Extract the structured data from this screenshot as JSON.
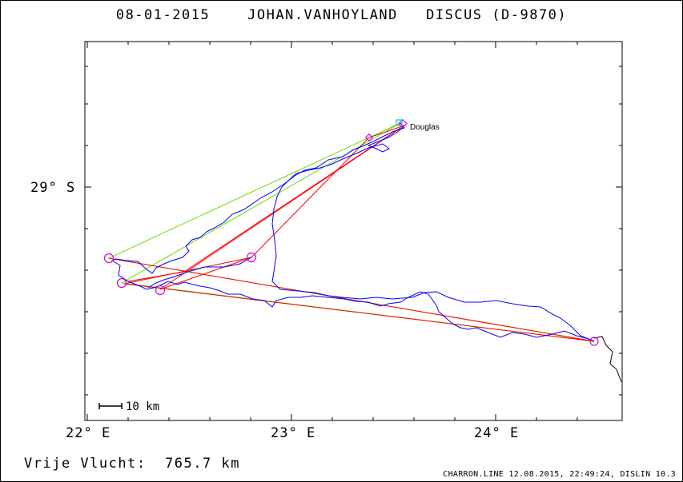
{
  "header": {
    "date": "08-01-2015",
    "pilot": "JOHAN.VANHOYLAND",
    "glider": "DISCUS (D-9870)"
  },
  "map": {
    "lat_label": "29° S",
    "lon_labels": [
      "22° E",
      "23° E",
      "24° E"
    ],
    "scale_label": "10 km",
    "place_label": "Douglas",
    "colors": {
      "track": "#0000ff",
      "turnpoint_leg": "#ff0000",
      "optimized_leg": "#66dd00",
      "turnpoint": "#dd00dd",
      "start": "#00cccc",
      "border": "#000000"
    }
  },
  "footer": {
    "distance_label": "Vrije Vlucht:",
    "distance_value": "765.7 km",
    "generator": "CHARRON.LINE 12.08.2015, 22:49:24, DISLIN 10.3"
  }
}
